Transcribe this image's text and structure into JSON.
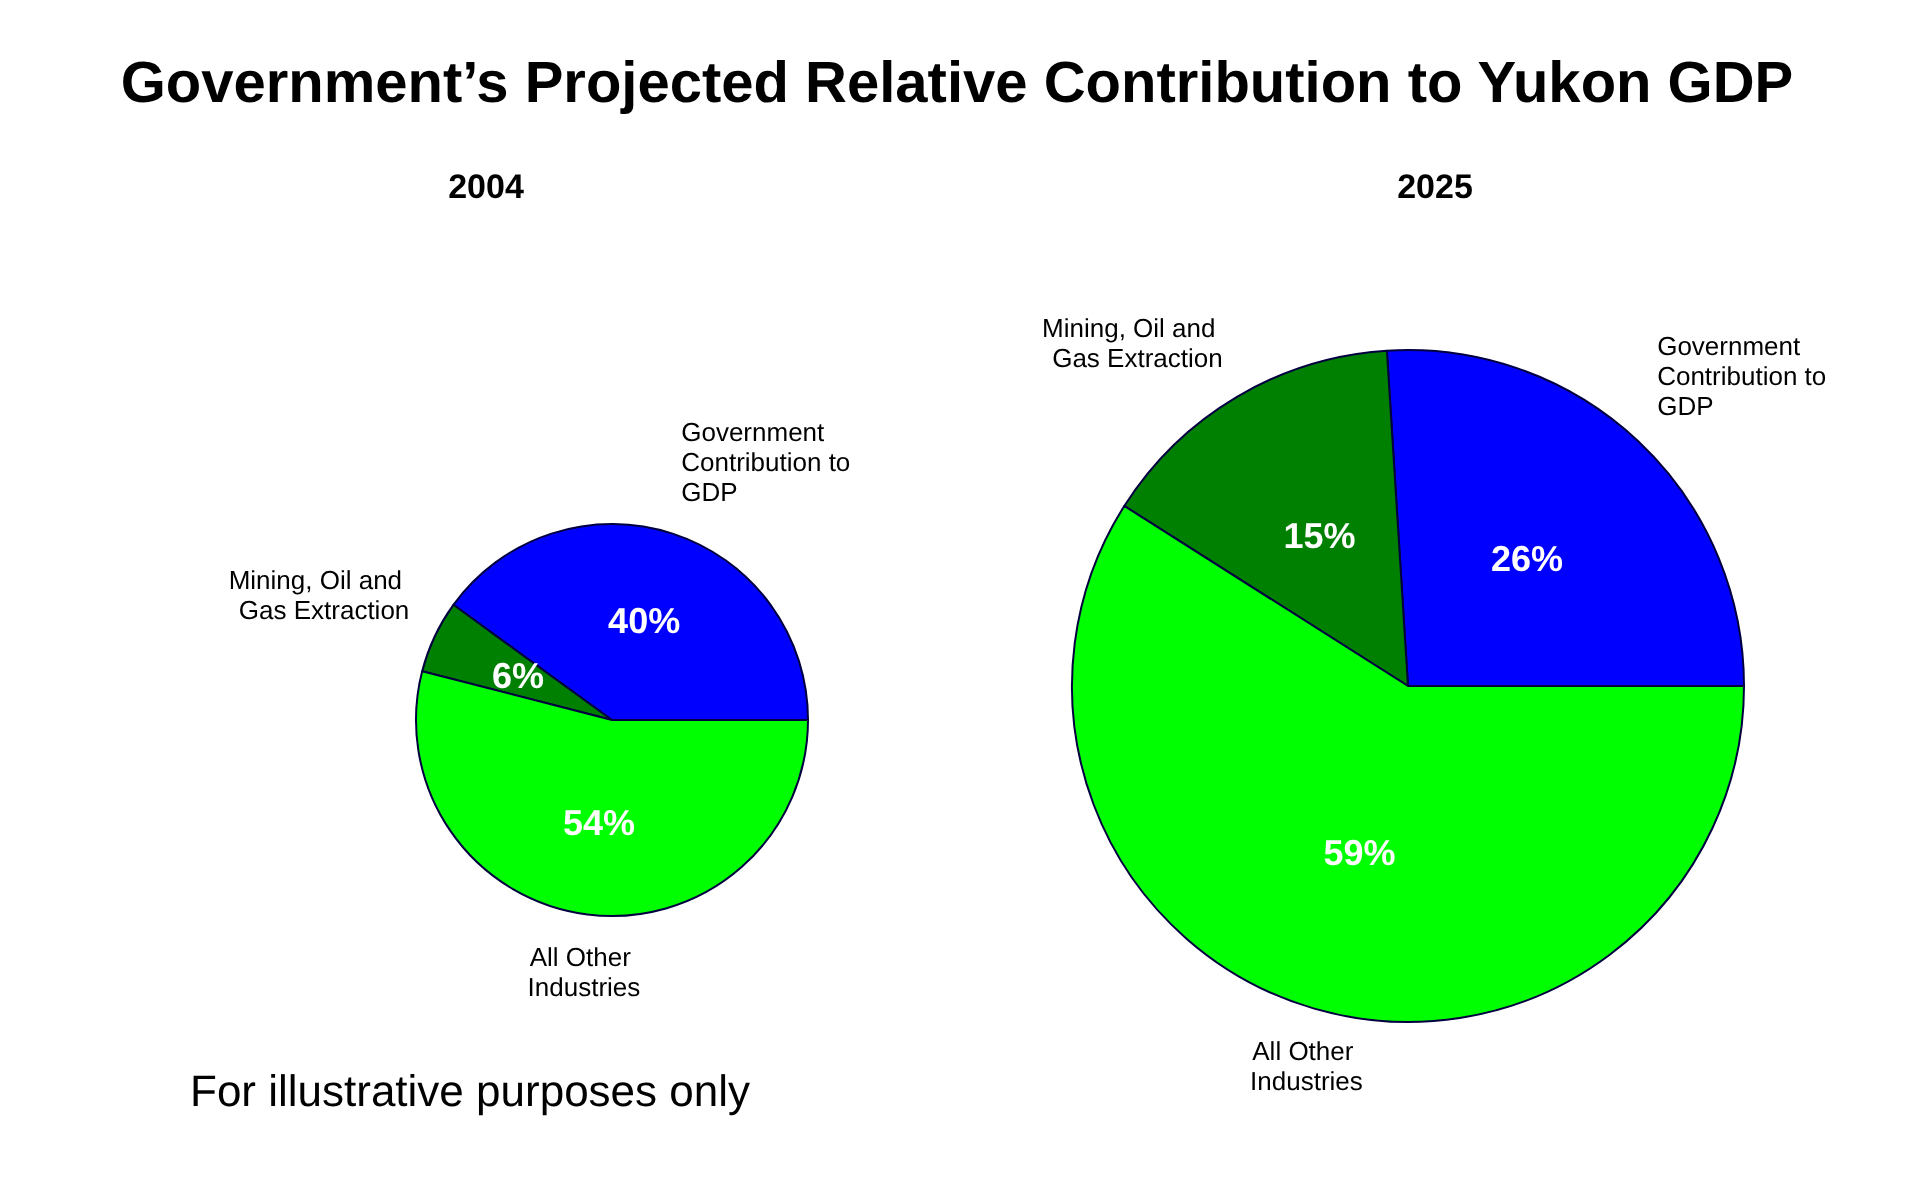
{
  "chart_data": [
    {
      "type": "pie",
      "title": "Government’s Projected Relative Contribution to Yukon GDP",
      "subtitle": "2004",
      "categories": [
        "Government Contribution to GDP",
        "Mining, Oil and Gas Extraction",
        "All Other Industries"
      ],
      "values": [
        40,
        6,
        54
      ],
      "value_labels": [
        "40%",
        "6%",
        "54%"
      ],
      "colors": [
        "#0000ff",
        "#008000",
        "#00ff00"
      ],
      "annotations": [
        "For illustrative purposes only"
      ]
    },
    {
      "type": "pie",
      "title": "2025",
      "categories": [
        "Government Contribution to GDP",
        "Mining, Oil and Gas Extraction",
        "All Other Industries"
      ],
      "values": [
        26,
        15,
        59
      ],
      "value_labels": [
        "26%",
        "15%",
        "59%"
      ],
      "colors": [
        "#0000ff",
        "#008000",
        "#00ff00"
      ]
    }
  ]
}
